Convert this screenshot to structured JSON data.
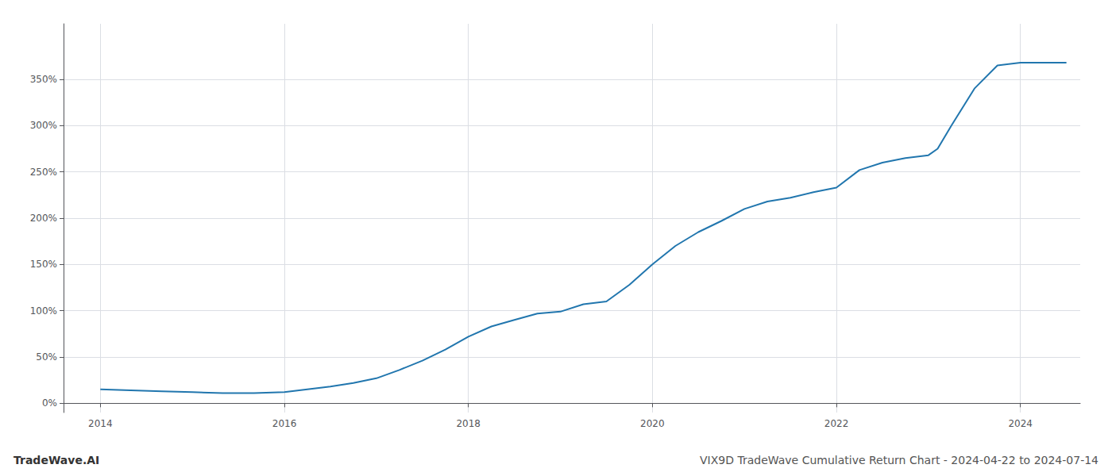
{
  "chart_data": {
    "type": "line",
    "title": "VIX9D TradeWave Cumulative Return Chart - 2024-04-22 to 2024-07-14",
    "annotations": [
      "TradeWave.AI"
    ],
    "color": "#2176ae",
    "grid": true,
    "x": [
      2014.0,
      2014.33,
      2014.67,
      2015.0,
      2015.33,
      2015.67,
      2016.0,
      2016.25,
      2016.5,
      2016.75,
      2017.0,
      2017.25,
      2017.5,
      2017.75,
      2018.0,
      2018.25,
      2018.5,
      2018.75,
      2019.0,
      2019.25,
      2019.5,
      2019.75,
      2020.0,
      2020.25,
      2020.5,
      2020.75,
      2021.0,
      2021.25,
      2021.5,
      2021.75,
      2022.0,
      2022.25,
      2022.5,
      2022.75,
      2023.0,
      2023.1,
      2023.25,
      2023.5,
      2023.75,
      2024.0,
      2024.2,
      2024.5
    ],
    "values": [
      15,
      14,
      13,
      12,
      11,
      11,
      12,
      15,
      18,
      22,
      27,
      36,
      46,
      58,
      72,
      83,
      90,
      97,
      99,
      107,
      110,
      128,
      150,
      170,
      185,
      197,
      210,
      218,
      222,
      228,
      233,
      252,
      260,
      265,
      268,
      275,
      300,
      340,
      365,
      368,
      368,
      368
    ],
    "xlim": [
      2013.6,
      2024.65
    ],
    "xticks": [
      2014,
      2016,
      2018,
      2020,
      2022,
      2024
    ],
    "ylim": [
      -10,
      410
    ],
    "yticks": [
      {
        "value": 0,
        "label": "0%"
      },
      {
        "value": 50,
        "label": "50%"
      },
      {
        "value": 100,
        "label": "100%"
      },
      {
        "value": 150,
        "label": "150%"
      },
      {
        "value": 200,
        "label": "200%"
      },
      {
        "value": 250,
        "label": "250%"
      },
      {
        "value": 300,
        "label": "300%"
      },
      {
        "value": 350,
        "label": "350%"
      }
    ]
  }
}
